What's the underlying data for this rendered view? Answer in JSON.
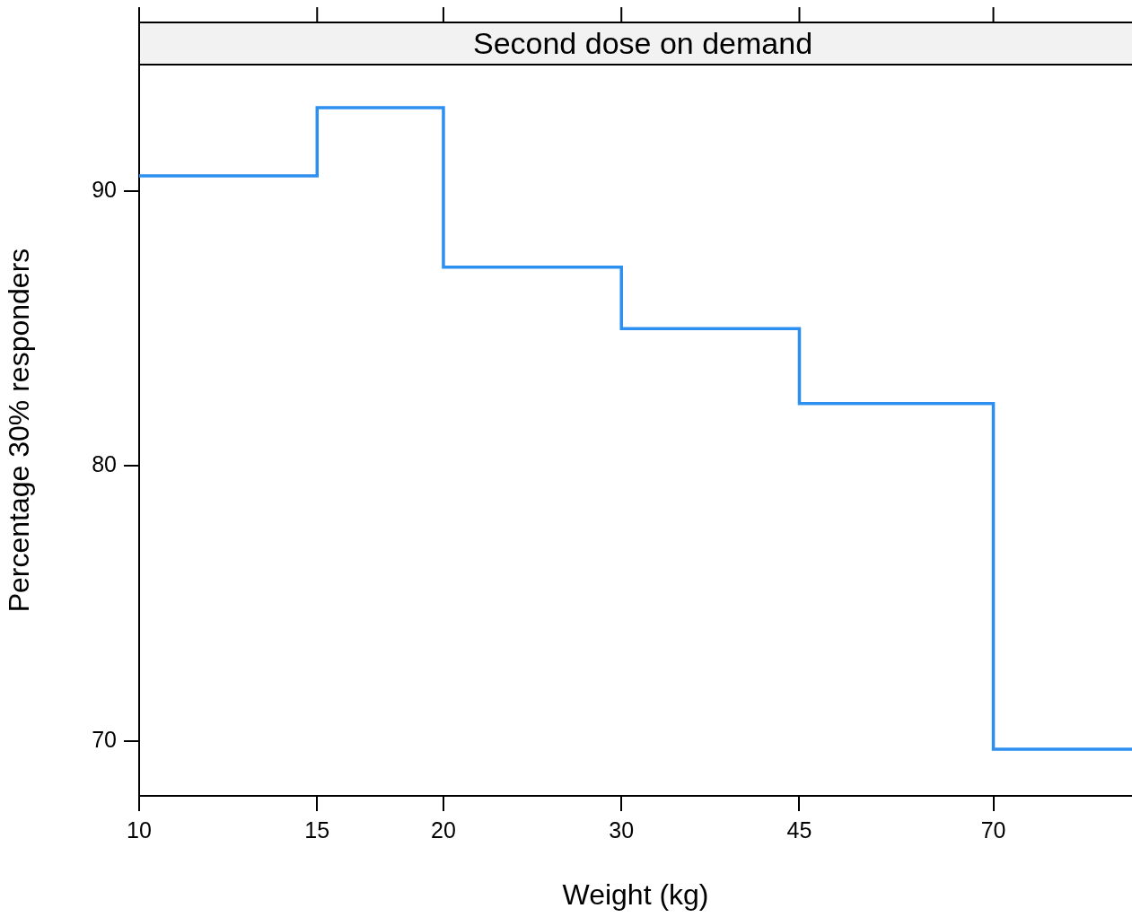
{
  "chart_data": {
    "type": "step",
    "title": "Second dose on demand",
    "xlabel": "Weight (kg)",
    "ylabel": "Percentage 30% responders",
    "log": "x",
    "x": [
      10,
      15,
      20,
      30,
      45,
      70,
      96
    ],
    "series": [
      {
        "color": "#2d8ff0",
        "values": [
          90.55,
          93.03,
          87.23,
          85.0,
          82.27,
          69.7,
          69.7
        ]
      }
    ],
    "xlim": [
      10,
      96
    ],
    "xticks": [
      10,
      15,
      20,
      30,
      45,
      70
    ],
    "ylim": [
      68,
      94.6
    ],
    "yticks": [
      70,
      80,
      90
    ],
    "legend": false
  }
}
